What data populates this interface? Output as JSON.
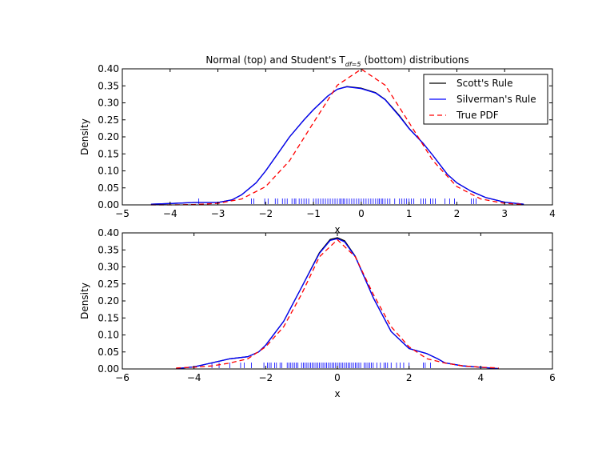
{
  "chart_data": [
    {
      "type": "line",
      "title": "Normal (top) and Student's T",
      "title_subscript": "df=5",
      "title_suffix": "(bottom) distributions",
      "xlabel": "x",
      "ylabel": "Density",
      "xlim": [
        -5,
        4
      ],
      "ylim": [
        0,
        0.4
      ],
      "xticks": [
        "−5",
        "−4",
        "−3",
        "−2",
        "−1",
        "0",
        "1",
        "2",
        "3",
        "4"
      ],
      "xtick_values": [
        -5,
        -4,
        -3,
        -2,
        -1,
        0,
        1,
        2,
        3,
        4
      ],
      "yticks": [
        "0.00",
        "0.05",
        "0.10",
        "0.15",
        "0.20",
        "0.25",
        "0.30",
        "0.35",
        "0.40"
      ],
      "ytick_values": [
        0,
        0.05,
        0.1,
        0.15,
        0.2,
        0.25,
        0.3,
        0.35,
        0.4
      ],
      "grid": false,
      "legend": {
        "placement": "top-right",
        "entries": [
          "Scott's Rule",
          "Silverman's Rule",
          "True PDF"
        ]
      },
      "series": [
        {
          "name": "Scott's Rule",
          "color": "#000000",
          "style": "solid",
          "x": [
            -4.4,
            -4,
            -3.5,
            -3,
            -2.7,
            -2.5,
            -2.2,
            -2,
            -1.7,
            -1.5,
            -1.2,
            -1,
            -0.7,
            -0.5,
            -0.3,
            0,
            0.3,
            0.5,
            0.8,
            1,
            1.3,
            1.5,
            1.8,
            2,
            2.3,
            2.6,
            3,
            3.4
          ],
          "y": [
            0.002,
            0.004,
            0.007,
            0.007,
            0.015,
            0.03,
            0.065,
            0.1,
            0.16,
            0.2,
            0.25,
            0.28,
            0.32,
            0.34,
            0.348,
            0.343,
            0.33,
            0.31,
            0.262,
            0.225,
            0.18,
            0.145,
            0.09,
            0.065,
            0.04,
            0.022,
            0.008,
            0.002
          ]
        },
        {
          "name": "Silverman's Rule",
          "color": "#0000ff",
          "style": "solid",
          "x": [
            -4.4,
            -4,
            -3.5,
            -3,
            -2.7,
            -2.5,
            -2.2,
            -2,
            -1.7,
            -1.5,
            -1.2,
            -1,
            -0.7,
            -0.5,
            -0.3,
            0,
            0.3,
            0.5,
            0.8,
            1,
            1.3,
            1.5,
            1.8,
            2,
            2.3,
            2.6,
            3,
            3.4
          ],
          "y": [
            0.002,
            0.004,
            0.007,
            0.007,
            0.015,
            0.03,
            0.065,
            0.1,
            0.16,
            0.2,
            0.25,
            0.28,
            0.32,
            0.34,
            0.347,
            0.342,
            0.329,
            0.309,
            0.26,
            0.224,
            0.18,
            0.145,
            0.09,
            0.065,
            0.04,
            0.022,
            0.008,
            0.002
          ]
        },
        {
          "name": "True PDF",
          "color": "#ff0000",
          "style": "dashed",
          "x": [
            -4.4,
            -4,
            -3.5,
            -3,
            -2.5,
            -2,
            -1.5,
            -1,
            -0.5,
            0,
            0.5,
            1,
            1.5,
            2,
            2.5,
            3,
            3.4
          ],
          "y": [
            3e-05,
            0.0001,
            0.0009,
            0.0044,
            0.0175,
            0.054,
            0.13,
            0.242,
            0.352,
            0.399,
            0.352,
            0.242,
            0.13,
            0.054,
            0.0175,
            0.0044,
            0.0012
          ]
        }
      ],
      "rug": [
        -3.4,
        -2.3,
        -2.25,
        -2.02,
        -1.95,
        -1.8,
        -1.75,
        -1.65,
        -1.6,
        -1.55,
        -1.45,
        -1.4,
        -1.37,
        -1.3,
        -1.25,
        -1.2,
        -1.15,
        -1.1,
        -1.0,
        -0.95,
        -0.9,
        -0.85,
        -0.8,
        -0.75,
        -0.7,
        -0.65,
        -0.6,
        -0.55,
        -0.5,
        -0.45,
        -0.42,
        -0.38,
        -0.35,
        -0.3,
        -0.25,
        -0.2,
        -0.15,
        -0.1,
        -0.05,
        0.0,
        0.05,
        0.1,
        0.15,
        0.2,
        0.25,
        0.3,
        0.35,
        0.38,
        0.42,
        0.45,
        0.5,
        0.55,
        0.6,
        0.7,
        0.8,
        0.85,
        0.9,
        0.95,
        1.0,
        1.05,
        1.1,
        1.25,
        1.3,
        1.35,
        1.45,
        1.5,
        1.55,
        1.75,
        1.85,
        1.95,
        2.3,
        2.35,
        2.4
      ]
    },
    {
      "type": "line",
      "xlabel": "x",
      "ylabel": "Density",
      "xlim": [
        -6,
        6
      ],
      "ylim": [
        0,
        0.4
      ],
      "xticks": [
        "−6",
        "−4",
        "−2",
        "0",
        "2",
        "4",
        "6"
      ],
      "xtick_values": [
        -6,
        -4,
        -2,
        0,
        2,
        4,
        6
      ],
      "yticks": [
        "0.00",
        "0.05",
        "0.10",
        "0.15",
        "0.20",
        "0.25",
        "0.30",
        "0.35",
        "0.40"
      ],
      "ytick_values": [
        0,
        0.05,
        0.1,
        0.15,
        0.2,
        0.25,
        0.3,
        0.35,
        0.4
      ],
      "grid": false,
      "series": [
        {
          "name": "Scott's Rule",
          "color": "#000000",
          "style": "solid",
          "x": [
            -4.5,
            -4,
            -3.5,
            -3,
            -2.5,
            -2.2,
            -2,
            -1.5,
            -1,
            -0.5,
            -0.2,
            0,
            0.2,
            0.5,
            1,
            1.5,
            2,
            2.5,
            2.8,
            3,
            3.5,
            4,
            4.5
          ],
          "y": [
            0.001,
            0.006,
            0.018,
            0.03,
            0.036,
            0.05,
            0.07,
            0.14,
            0.24,
            0.342,
            0.381,
            0.386,
            0.377,
            0.331,
            0.21,
            0.11,
            0.06,
            0.045,
            0.03,
            0.018,
            0.009,
            0.005,
            0.001
          ]
        },
        {
          "name": "Silverman's Rule",
          "color": "#0000ff",
          "style": "solid",
          "x": [
            -4.5,
            -4,
            -3.5,
            -3,
            -2.5,
            -2.2,
            -2,
            -1.5,
            -1,
            -0.5,
            -0.2,
            0,
            0.2,
            0.5,
            1,
            1.5,
            2,
            2.5,
            2.8,
            3,
            3.5,
            4,
            4.5
          ],
          "y": [
            0.001,
            0.006,
            0.018,
            0.03,
            0.036,
            0.05,
            0.07,
            0.14,
            0.24,
            0.34,
            0.378,
            0.383,
            0.374,
            0.33,
            0.21,
            0.11,
            0.06,
            0.045,
            0.03,
            0.018,
            0.009,
            0.005,
            0.001
          ]
        },
        {
          "name": "True PDF",
          "color": "#ff0000",
          "style": "dashed",
          "x": [
            -4.5,
            -4,
            -3.5,
            -3,
            -2.5,
            -2,
            -1.5,
            -1,
            -0.5,
            0,
            0.5,
            1,
            1.5,
            2,
            2.5,
            3,
            3.5,
            4,
            4.5
          ],
          "y": [
            0.0029,
            0.0051,
            0.009,
            0.0173,
            0.03,
            0.065,
            0.124,
            0.22,
            0.33,
            0.38,
            0.33,
            0.22,
            0.124,
            0.065,
            0.03,
            0.0173,
            0.009,
            0.0051,
            0.0029
          ]
        }
      ],
      "rug": [
        -3.5,
        -3.3,
        -3.0,
        -2.7,
        -2.6,
        -2.4,
        -2.05,
        -1.95,
        -1.9,
        -1.85,
        -1.75,
        -1.7,
        -1.6,
        -1.55,
        -1.4,
        -1.35,
        -1.3,
        -1.25,
        -1.2,
        -1.15,
        -1.1,
        -1.0,
        -0.95,
        -0.9,
        -0.85,
        -0.8,
        -0.75,
        -0.7,
        -0.65,
        -0.6,
        -0.55,
        -0.5,
        -0.45,
        -0.4,
        -0.35,
        -0.3,
        -0.25,
        -0.2,
        -0.15,
        -0.1,
        -0.05,
        0.0,
        0.05,
        0.1,
        0.15,
        0.2,
        0.25,
        0.3,
        0.35,
        0.4,
        0.45,
        0.5,
        0.55,
        0.6,
        0.65,
        0.75,
        0.8,
        0.85,
        0.9,
        0.95,
        1.0,
        1.1,
        1.2,
        1.3,
        1.35,
        1.4,
        1.5,
        1.65,
        1.75,
        1.85,
        2.0,
        2.4,
        2.45,
        2.6
      ]
    }
  ]
}
